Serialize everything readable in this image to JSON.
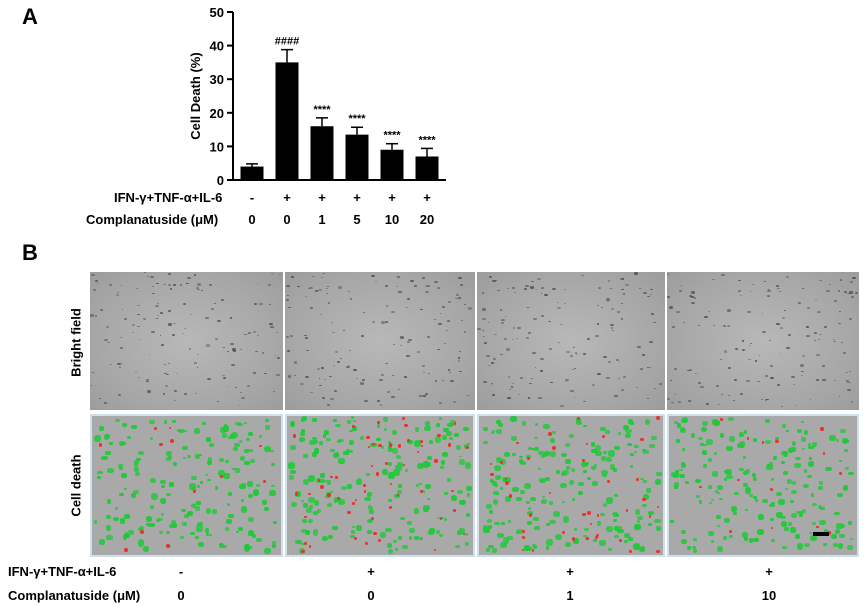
{
  "panel_a": {
    "letter": "A"
  },
  "panel_b": {
    "letter": "B",
    "row_labels": [
      "Bright field",
      "Cell death"
    ],
    "treatment_label": "IFN-γ+TNF-α+IL-6",
    "treatment_marks": [
      "-",
      "+",
      "+",
      "+"
    ],
    "dose_label": "Complanatuside (μM)",
    "dose_values": [
      "0",
      "0",
      "1",
      "10"
    ],
    "colors": {
      "live": "#22c83a",
      "dead": "#e8332b"
    }
  },
  "chart_data": {
    "type": "bar",
    "categories": [
      "0",
      "0",
      "1",
      "5",
      "10",
      "20"
    ],
    "values": [
      4,
      35,
      16,
      13.5,
      9,
      7
    ],
    "errors": [
      0.8,
      3.8,
      2.5,
      2.2,
      1.8,
      2.4
    ],
    "significance": [
      "",
      "####",
      "****",
      "****",
      "****",
      "****"
    ],
    "ylabel": "Cell Death (%)",
    "ylim": [
      0,
      50
    ],
    "yticks": [
      "0",
      "10",
      "20",
      "30",
      "40",
      "50"
    ],
    "treatment_label": "IFN-γ+TNF-α+IL-6",
    "treatment_marks": [
      "-",
      "+",
      "+",
      "+",
      "+",
      "+"
    ],
    "dose_label": "Complanatuside (μM)",
    "dose_values": [
      "0",
      "0",
      "1",
      "5",
      "10",
      "20"
    ],
    "bar_color": "#000000"
  }
}
